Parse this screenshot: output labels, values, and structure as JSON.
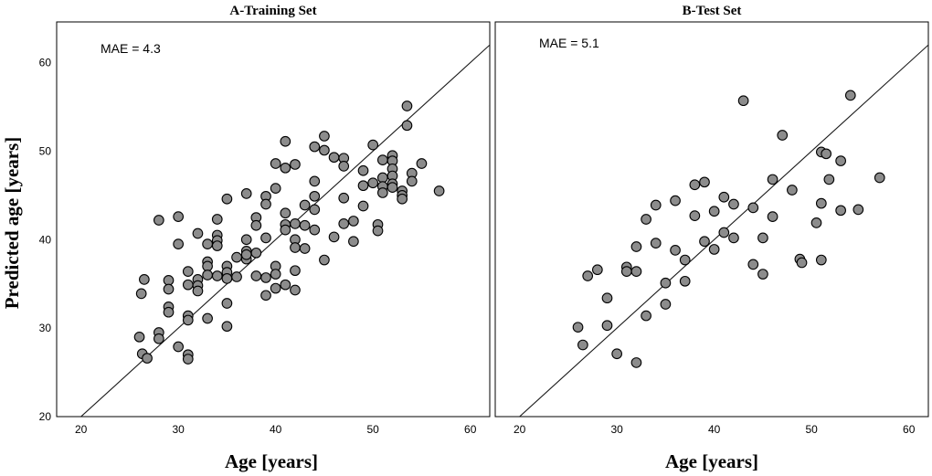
{
  "figure": {
    "xlabel": "Age [years]",
    "ylabel": "Predicted age [years]"
  },
  "chart_data": [
    {
      "type": "scatter",
      "title": "A-Training Set",
      "annotation": "MAE = 4.3",
      "xlabel": "Age [years]",
      "ylabel": "Predicted age [years]",
      "xlim": [
        17.5,
        62
      ],
      "ylim": [
        20,
        64.6
      ],
      "xticks": [
        20,
        30,
        40,
        50,
        60
      ],
      "yticks": [
        20,
        30,
        40,
        50,
        60
      ],
      "reference_line": "y = x",
      "grid": false,
      "points": [
        [
          26,
          29
        ],
        [
          26.2,
          33.9
        ],
        [
          26.5,
          35.5
        ],
        [
          26.3,
          27.1
        ],
        [
          26.8,
          26.6
        ],
        [
          28,
          42.2
        ],
        [
          28,
          29.5
        ],
        [
          28,
          28.8
        ],
        [
          29,
          35.4
        ],
        [
          29,
          34.4
        ],
        [
          29,
          32.4
        ],
        [
          29,
          31.8
        ],
        [
          30,
          42.6
        ],
        [
          30,
          39.5
        ],
        [
          30,
          27.9
        ],
        [
          31,
          36.4
        ],
        [
          31,
          34.9
        ],
        [
          31,
          31.4
        ],
        [
          31,
          30.9
        ],
        [
          31,
          27
        ],
        [
          31,
          26.5
        ],
        [
          32,
          40.7
        ],
        [
          32,
          35.5
        ],
        [
          32,
          34.8
        ],
        [
          32,
          34.2
        ],
        [
          33,
          39.5
        ],
        [
          33,
          37.5
        ],
        [
          33,
          37
        ],
        [
          33,
          36
        ],
        [
          33,
          31.1
        ],
        [
          34,
          42.3
        ],
        [
          34,
          40.5
        ],
        [
          34,
          39.9
        ],
        [
          34,
          39.3
        ],
        [
          34,
          35.9
        ],
        [
          35,
          44.6
        ],
        [
          35,
          37
        ],
        [
          35,
          36.3
        ],
        [
          35,
          35.6
        ],
        [
          35,
          32.8
        ],
        [
          35,
          30.2
        ],
        [
          36,
          38
        ],
        [
          36,
          35.8
        ],
        [
          37,
          45.2
        ],
        [
          37,
          40
        ],
        [
          37,
          38.7
        ],
        [
          37,
          37.8
        ],
        [
          37,
          38.3
        ],
        [
          38,
          42.5
        ],
        [
          38,
          41.6
        ],
        [
          38,
          38.5
        ],
        [
          38,
          35.9
        ],
        [
          39,
          44.9
        ],
        [
          39,
          44
        ],
        [
          39,
          40.2
        ],
        [
          39,
          35.7
        ],
        [
          39,
          33.7
        ],
        [
          40,
          48.6
        ],
        [
          40,
          45.8
        ],
        [
          40,
          37
        ],
        [
          40,
          36.1
        ],
        [
          40,
          34.5
        ],
        [
          41,
          51.1
        ],
        [
          41,
          48.1
        ],
        [
          41,
          43
        ],
        [
          41,
          41.7
        ],
        [
          41,
          41.1
        ],
        [
          41,
          34.9
        ],
        [
          42,
          48.5
        ],
        [
          42,
          41.8
        ],
        [
          42,
          40
        ],
        [
          42,
          39.1
        ],
        [
          42,
          36.5
        ],
        [
          42,
          34.3
        ],
        [
          43,
          43.9
        ],
        [
          43,
          41.6
        ],
        [
          43,
          39
        ],
        [
          44,
          50.5
        ],
        [
          44,
          46.6
        ],
        [
          44,
          44.9
        ],
        [
          44,
          43.4
        ],
        [
          44,
          41.1
        ],
        [
          45,
          51.7
        ],
        [
          45,
          50.1
        ],
        [
          45,
          37.7
        ],
        [
          46,
          49.3
        ],
        [
          46,
          40.3
        ],
        [
          47,
          49.2
        ],
        [
          47,
          48.3
        ],
        [
          47,
          44.7
        ],
        [
          47,
          41.8
        ],
        [
          48,
          42.1
        ],
        [
          48,
          39.8
        ],
        [
          49,
          47.8
        ],
        [
          49,
          46.1
        ],
        [
          49,
          43.8
        ],
        [
          50,
          50.7
        ],
        [
          50,
          46.4
        ],
        [
          50.5,
          41.7
        ],
        [
          50.5,
          41
        ],
        [
          51,
          49
        ],
        [
          51,
          47
        ],
        [
          51,
          46
        ],
        [
          51,
          45.3
        ],
        [
          52,
          49.5
        ],
        [
          52,
          48.9
        ],
        [
          52,
          48
        ],
        [
          52,
          47.2
        ],
        [
          52,
          46.3
        ],
        [
          52,
          45.9
        ],
        [
          53,
          45.5
        ],
        [
          53,
          45
        ],
        [
          53,
          44.6
        ],
        [
          53.5,
          55.1
        ],
        [
          53.5,
          52.9
        ],
        [
          54,
          47.5
        ],
        [
          54,
          46.6
        ],
        [
          55,
          48.6
        ],
        [
          56.8,
          45.5
        ]
      ]
    },
    {
      "type": "scatter",
      "title": "B-Test Set",
      "annotation": "MAE = 5.1",
      "xlabel": "Age [years]",
      "ylabel": "Predicted age [years]",
      "xlim": [
        17.5,
        62
      ],
      "ylim": [
        20,
        64.6
      ],
      "xticks": [
        20,
        30,
        40,
        50,
        60
      ],
      "yticks": [
        20,
        30,
        40,
        50,
        60
      ],
      "reference_line": "y = x",
      "grid": false,
      "points": [
        [
          26,
          30.1
        ],
        [
          26.5,
          28.1
        ],
        [
          27,
          35.9
        ],
        [
          28,
          36.6
        ],
        [
          29,
          33.4
        ],
        [
          29,
          30.3
        ],
        [
          30,
          27.1
        ],
        [
          31,
          36.9
        ],
        [
          31,
          36.4
        ],
        [
          32,
          39.2
        ],
        [
          32,
          36.4
        ],
        [
          32,
          26.1
        ],
        [
          33,
          42.3
        ],
        [
          33,
          31.4
        ],
        [
          34,
          43.9
        ],
        [
          34,
          39.6
        ],
        [
          35,
          35.1
        ],
        [
          35,
          32.7
        ],
        [
          36,
          44.4
        ],
        [
          36,
          38.8
        ],
        [
          37,
          37.7
        ],
        [
          37,
          35.3
        ],
        [
          38,
          46.2
        ],
        [
          38,
          42.7
        ],
        [
          39,
          46.5
        ],
        [
          39,
          39.8
        ],
        [
          40,
          43.2
        ],
        [
          40,
          38.9
        ],
        [
          41,
          44.8
        ],
        [
          41,
          40.8
        ],
        [
          42,
          44
        ],
        [
          42,
          40.2
        ],
        [
          43,
          55.7
        ],
        [
          44,
          43.6
        ],
        [
          44,
          37.2
        ],
        [
          45,
          40.2
        ],
        [
          45,
          36.1
        ],
        [
          46,
          46.8
        ],
        [
          46,
          42.6
        ],
        [
          47,
          51.8
        ],
        [
          48,
          45.6
        ],
        [
          48.8,
          37.8
        ],
        [
          49,
          37.4
        ],
        [
          50.5,
          41.9
        ],
        [
          51,
          49.9
        ],
        [
          51,
          44.1
        ],
        [
          51,
          37.7
        ],
        [
          51.5,
          49.7
        ],
        [
          51.8,
          46.8
        ],
        [
          53,
          48.9
        ],
        [
          53,
          43.3
        ],
        [
          54,
          56.3
        ],
        [
          54.8,
          43.4
        ],
        [
          57,
          47
        ]
      ]
    }
  ]
}
